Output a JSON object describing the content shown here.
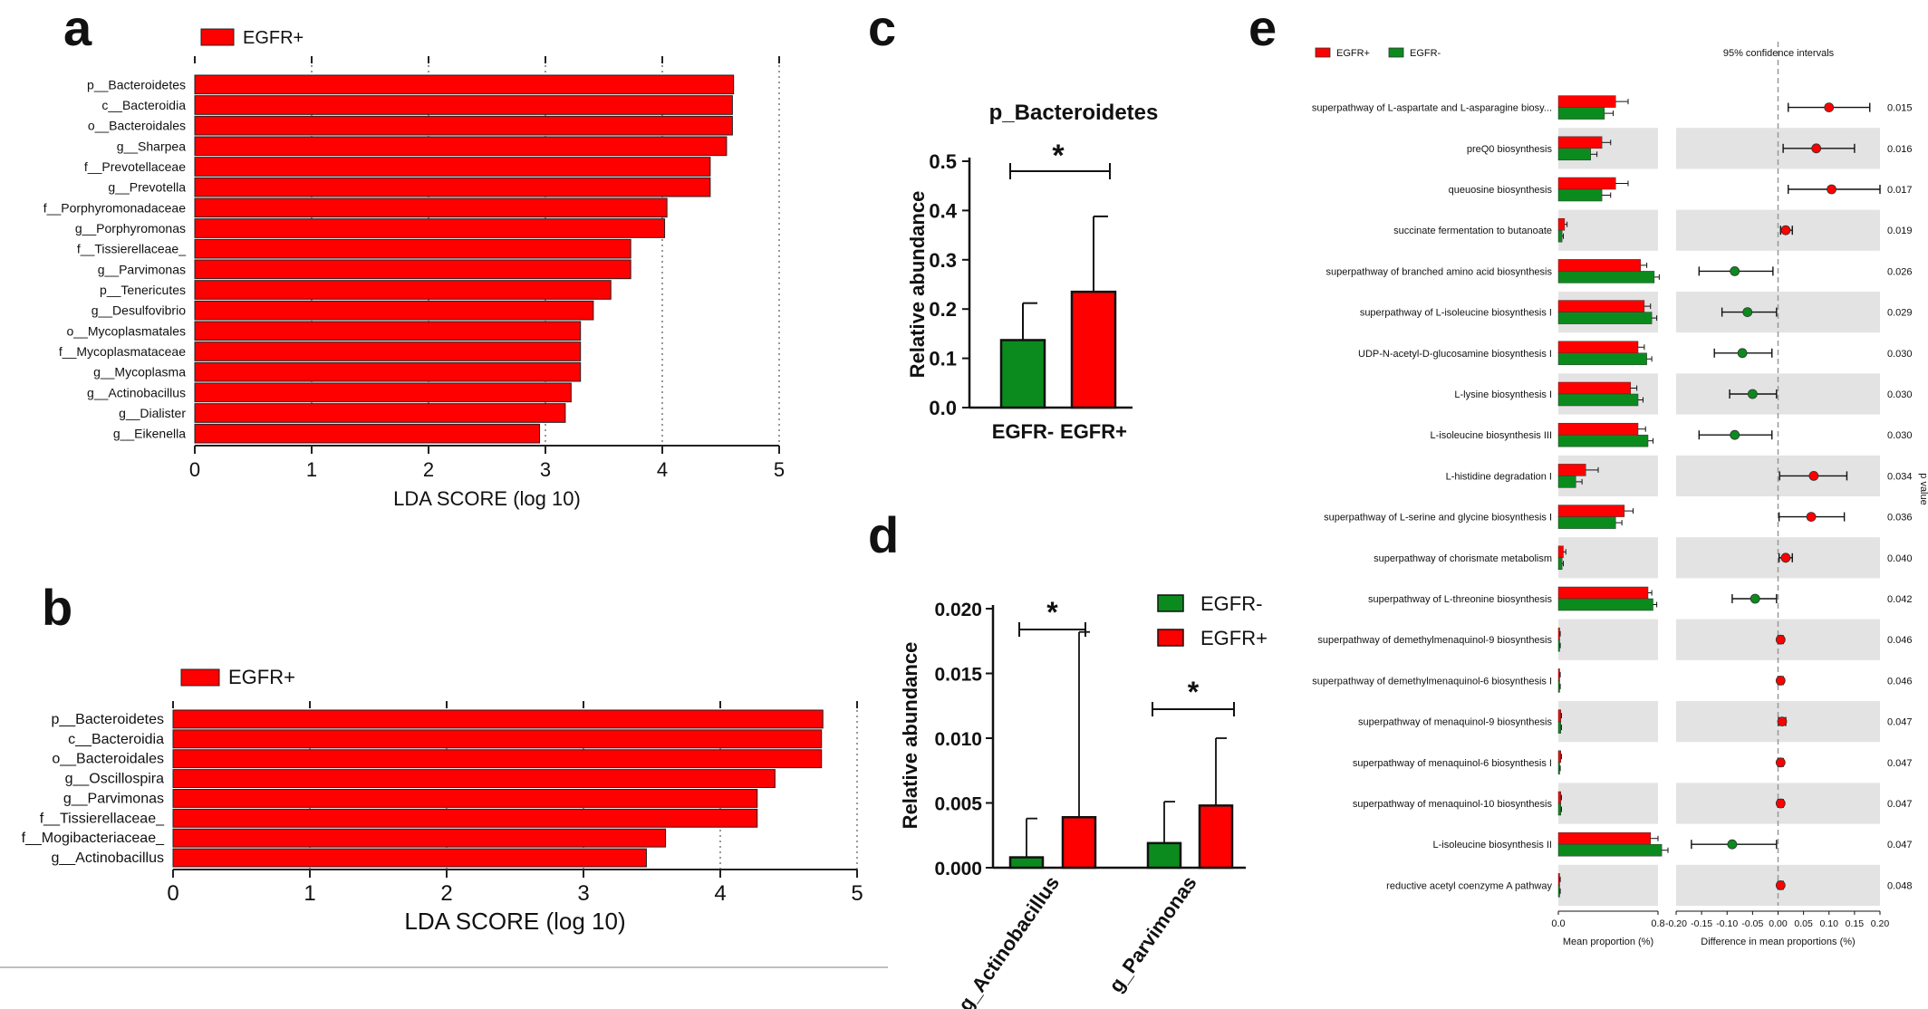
{
  "chart_data": [
    {
      "panel": "a",
      "type": "bar",
      "orientation": "horizontal",
      "legend": [
        "EGFR+"
      ],
      "color": "#ff0000",
      "categories": [
        "p__Bacteroidetes",
        "c__Bacteroidia",
        "o__Bacteroidales",
        "g__Sharpea",
        "f__Prevotellaceae",
        "g__Prevotella",
        "f__Porphyromonadaceae",
        "g__Porphyromonas",
        "f__Tissierellaceae_",
        "g__Parvimonas",
        "p__Tenericutes",
        "g__Desulfovibrio",
        "o__Mycoplasmatales",
        "f__Mycoplasmataceae",
        "g__Mycoplasma",
        "g__Actinobacillus",
        "g__Dialister",
        "g__Eikenella"
      ],
      "values": [
        4.61,
        4.6,
        4.6,
        4.55,
        4.41,
        4.41,
        4.04,
        4.02,
        3.73,
        3.73,
        3.56,
        3.41,
        3.3,
        3.3,
        3.3,
        3.22,
        3.17,
        2.95
      ],
      "xlabel": "LDA SCORE (log 10)",
      "xlim": [
        0,
        5
      ],
      "xticks": [
        "0",
        "1",
        "2",
        "3",
        "4",
        "5"
      ]
    },
    {
      "panel": "b",
      "type": "bar",
      "orientation": "horizontal",
      "legend": [
        "EGFR+"
      ],
      "color": "#ff0000",
      "categories": [
        "p__Bacteroidetes",
        "c__Bacteroidia",
        "o__Bacteroidales",
        "g__Oscillospira",
        "g__Parvimonas",
        "f__Tissierellaceae_",
        "f__Mogibacteriaceae_",
        "g__Actinobacillus"
      ],
      "values": [
        4.75,
        4.74,
        4.74,
        4.4,
        4.27,
        4.27,
        3.6,
        3.46
      ],
      "xlabel": "LDA SCORE (log 10)",
      "xlim": [
        0,
        5
      ],
      "xticks": [
        "0",
        "1",
        "2",
        "3",
        "4",
        "5"
      ]
    },
    {
      "panel": "c",
      "type": "bar",
      "title": "p_Bacteroidetes",
      "categories": [
        "EGFR-",
        "EGFR+"
      ],
      "values": [
        0.137,
        0.235
      ],
      "errors": [
        0.075,
        0.153
      ],
      "colors": [
        "#0b8b1d",
        "#ff0000"
      ],
      "ylabel": "Relative abundance",
      "ylim": [
        0,
        0.5
      ],
      "yticks": [
        "0.0",
        "0.1",
        "0.2",
        "0.3",
        "0.4",
        "0.5"
      ],
      "significance": "*"
    },
    {
      "panel": "d",
      "type": "bar",
      "categories": [
        "g_Actinobacillus",
        "g_Parvimonas"
      ],
      "series": [
        {
          "name": "EGFR-",
          "color": "#0b8b1d",
          "values": [
            0.0008,
            0.0019
          ],
          "errors": [
            0.003,
            0.0032
          ]
        },
        {
          "name": "EGFR+",
          "color": "#ff0000",
          "values": [
            0.0039,
            0.0048
          ],
          "errors": [
            0.0143,
            0.0052
          ]
        }
      ],
      "ylabel": "Relative abundance",
      "ylim": [
        0,
        0.02
      ],
      "yticks": [
        "0.000",
        "0.005",
        "0.010",
        "0.015",
        "0.020"
      ],
      "significance": [
        "*",
        "*"
      ]
    },
    {
      "panel": "e",
      "type": "bar",
      "legend": [
        "EGFR+",
        "EGFR-"
      ],
      "colors": {
        "EGFR+": "#ff0000",
        "EGFR-": "#0b8b1d"
      },
      "ci_title": "95% confidence intervals",
      "categories": [
        "superpathway of L-aspartate and L-asparagine biosy...",
        "preQ0 biosynthesis",
        "queuosine biosynthesis",
        "succinate fermentation to butanoate",
        "superpathway of branched amino acid biosynthesis",
        "superpathway of L-isoleucine biosynthesis I",
        "UDP-N-acetyl-D-glucosamine biosynthesis I",
        "L-lysine biosynthesis I",
        "L-isoleucine biosynthesis III",
        "L-histidine degradation I",
        "superpathway of L-serine and glycine biosynthesis I",
        "superpathway of chorismate metabolism",
        "superpathway of L-threonine biosynthesis",
        "superpathway of demethylmenaquinol-9 biosynthesis",
        "superpathway of demethylmenaquinol-6 biosynthesis I",
        "superpathway of menaquinol-9 biosynthesis",
        "superpathway of menaquinol-6 biosynthesis I",
        "superpathway of menaquinol-10 biosynthesis",
        "L-isoleucine biosynthesis II",
        "reductive acetyl coenzyme A pathway"
      ],
      "mean_egfr_plus": [
        0.46,
        0.35,
        0.46,
        0.05,
        0.66,
        0.69,
        0.64,
        0.58,
        0.64,
        0.22,
        0.53,
        0.04,
        0.72,
        0.01,
        0.01,
        0.02,
        0.02,
        0.02,
        0.74,
        0.01
      ],
      "mean_egfr_minus": [
        0.37,
        0.26,
        0.35,
        0.03,
        0.77,
        0.75,
        0.71,
        0.64,
        0.72,
        0.14,
        0.46,
        0.03,
        0.76,
        0.01,
        0.01,
        0.02,
        0.01,
        0.02,
        0.83,
        0.01
      ],
      "mean_err_plus": [
        0.1,
        0.07,
        0.1,
        0.02,
        0.05,
        0.05,
        0.05,
        0.05,
        0.06,
        0.1,
        0.07,
        0.02,
        0.03,
        0.005,
        0.005,
        0.005,
        0.005,
        0.005,
        0.06,
        0.005
      ],
      "mean_err_minus": [
        0.07,
        0.05,
        0.07,
        0.01,
        0.04,
        0.04,
        0.04,
        0.04,
        0.04,
        0.05,
        0.05,
        0.01,
        0.03,
        0.005,
        0.005,
        0.005,
        0.005,
        0.005,
        0.05,
        0.005
      ],
      "mean_xlabel": "Mean proportion (%)",
      "mean_xticks": [
        "0.0",
        "0.8"
      ],
      "mean_xlim": [
        0,
        0.8
      ],
      "diff": [
        0.1,
        0.075,
        0.105,
        0.015,
        -0.085,
        -0.06,
        -0.07,
        -0.05,
        -0.085,
        0.07,
        0.065,
        0.015,
        -0.045,
        0.005,
        0.005,
        0.008,
        0.005,
        0.005,
        -0.09,
        0.005
      ],
      "ci_low": [
        0.02,
        0.01,
        0.02,
        0.005,
        -0.155,
        -0.11,
        -0.125,
        -0.095,
        -0.155,
        0.003,
        0.002,
        0.002,
        -0.09,
        0.0,
        0.0,
        0.001,
        0.0,
        0.0,
        -0.17,
        0.0
      ],
      "ci_high": [
        0.18,
        0.15,
        0.2,
        0.028,
        -0.01,
        -0.003,
        -0.012,
        -0.003,
        -0.012,
        0.135,
        0.13,
        0.028,
        -0.003,
        0.01,
        0.01,
        0.015,
        0.01,
        0.01,
        -0.003,
        0.01
      ],
      "diff_xlabel": "Difference in mean proportions (%)",
      "diff_xlim": [
        -0.2,
        0.2
      ],
      "diff_xticks": [
        "-0.20",
        "-0.15",
        "-0.10",
        "-0.05",
        "0.00",
        "0.05",
        "0.10",
        "0.15",
        "0.20"
      ],
      "p_values": [
        "0.015",
        "0.016",
        "0.017",
        "0.019",
        "0.026",
        "0.029",
        "0.030",
        "0.030",
        "0.030",
        "0.034",
        "0.036",
        "0.040",
        "0.042",
        "0.046",
        "0.046",
        "0.047",
        "0.047",
        "0.047",
        "0.047",
        "0.048"
      ],
      "p_label": "p value"
    }
  ]
}
